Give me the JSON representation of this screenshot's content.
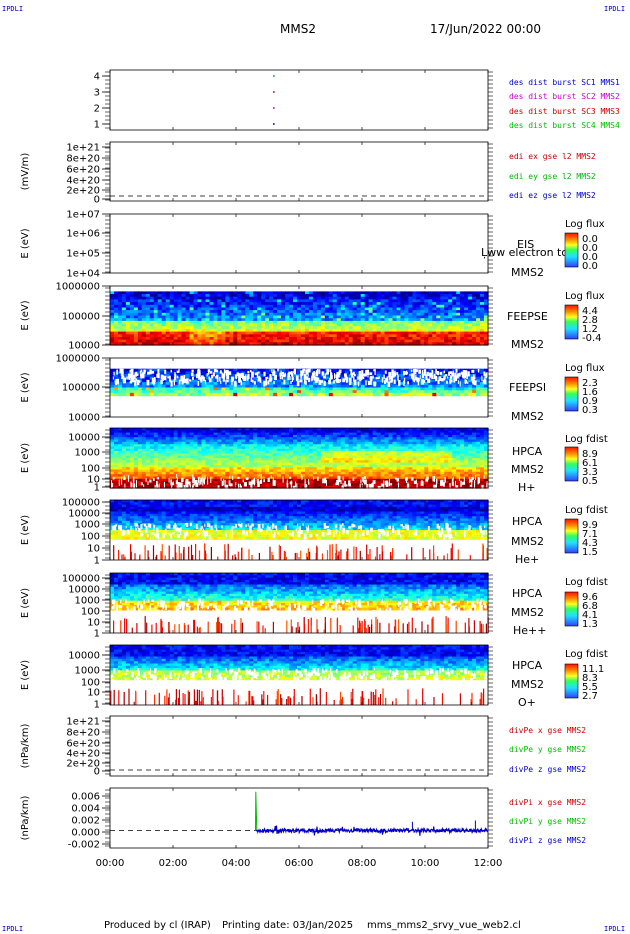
{
  "corner_label": "IPDLI",
  "header": {
    "spacecraft": "MMS2",
    "date": "17/Jun/2022 00:00"
  },
  "footer": {
    "produced_by": "Produced by cl (IRAP)",
    "printing_date": "Printing date: 03/Jan/2025",
    "script": "mms_mms2_srvy_vue_web2.cl"
  },
  "colors": {
    "mms1": "#0000cc",
    "mms2": "#cc00cc",
    "mms3": "#cc0000",
    "mms4": "#00bb00",
    "x": "#cc0000",
    "y": "#00bb00",
    "z": "#0000cc"
  },
  "chart_data": {
    "type": "multi-panel time series",
    "time_axis": {
      "ticks": [
        "00:00",
        "02:00",
        "04:00",
        "06:00",
        "08:00",
        "10:00",
        "12:00"
      ],
      "range_hours": [
        0,
        12
      ]
    },
    "panels": [
      {
        "id": "burst",
        "type": "scatter",
        "yticks": [
          "1",
          "2",
          "3",
          "4"
        ],
        "legend": [
          "des dist burst SC1 MMS1",
          "des dist burst SC2 MMS2",
          "des dist burst SC3 MMS3",
          "des dist burst SC4 MMS4"
        ],
        "points": [
          {
            "x_hours": 5.2,
            "y": 4,
            "series": 4
          },
          {
            "x_hours": 5.2,
            "y": 3,
            "series": 3
          },
          {
            "x_hours": 5.2,
            "y": 2,
            "series": 2
          },
          {
            "x_hours": 5.2,
            "y": 1,
            "series": 1
          }
        ]
      },
      {
        "id": "edi",
        "type": "line",
        "ylabel": "(mV/m)",
        "yticks": [
          "1e+21",
          "8e+20",
          "6e+20",
          "4e+20",
          "2e+20",
          "0"
        ],
        "legend": [
          "edi ex gse l2 MMS2",
          "edi ey gse l2 MMS2",
          "edi ez gse l2 MMS2"
        ]
      },
      {
        "id": "eis",
        "type": "heatmap",
        "ylabel": "E (eV)",
        "yticks": [
          "1e+07",
          "1e+06",
          "1e+05",
          "1e+04"
        ],
        "labels": [
          "EIS",
          "MMS2"
        ],
        "overlap_text": "Ļww electron to",
        "colorbar": {
          "title": "Log flux",
          "values": [
            "0.0",
            "0.0",
            "0.0",
            "0.0"
          ]
        }
      },
      {
        "id": "feepse",
        "type": "heatmap",
        "ylabel": "E (eV)",
        "yticks": [
          "1000000",
          "100000",
          "10000"
        ],
        "labels": [
          "FEEPSE",
          "MMS2"
        ],
        "colorbar": {
          "title": "Log flux",
          "values": [
            "4.4",
            "2.8",
            "1.2",
            "-0.4"
          ]
        }
      },
      {
        "id": "feepsi",
        "type": "heatmap",
        "ylabel": "E (eV)",
        "yticks": [
          "1000000",
          "100000",
          "10000"
        ],
        "labels": [
          "FEEPSI",
          "MMS2"
        ],
        "colorbar": {
          "title": "Log flux",
          "values": [
            "2.3",
            "1.6",
            "0.9",
            "0.3"
          ]
        }
      },
      {
        "id": "hpca-h",
        "type": "heatmap",
        "ylabel": "E (eV)",
        "yticks": [
          "10000",
          "1000",
          "100",
          "10",
          "1"
        ],
        "labels": [
          "HPCA",
          "MMS2",
          "H+"
        ],
        "colorbar": {
          "title": "Log fdist",
          "values": [
            "8.9",
            "6.1",
            "3.3",
            "0.5"
          ]
        }
      },
      {
        "id": "hpca-he",
        "type": "heatmap",
        "ylabel": "E (eV)",
        "yticks": [
          "100000",
          "10000",
          "1000",
          "100",
          "10",
          "1"
        ],
        "labels": [
          "HPCA",
          "MMS2",
          "He+"
        ],
        "colorbar": {
          "title": "Log fdist",
          "values": [
            "9.9",
            "7.1",
            "4.3",
            "1.5"
          ]
        }
      },
      {
        "id": "hpca-hepp",
        "type": "heatmap",
        "ylabel": "E (eV)",
        "yticks": [
          "100000",
          "10000",
          "1000",
          "100",
          "10",
          "1"
        ],
        "labels": [
          "HPCA",
          "MMS2",
          "He++"
        ],
        "colorbar": {
          "title": "Log fdist",
          "values": [
            "9.6",
            "6.8",
            "4.1",
            "1.3"
          ]
        }
      },
      {
        "id": "hpca-o",
        "type": "heatmap",
        "ylabel": "E (eV)",
        "yticks": [
          "10000",
          "1000",
          "100",
          "10",
          "1"
        ],
        "labels": [
          "HPCA",
          "MMS2",
          "O+"
        ],
        "colorbar": {
          "title": "Log fdist",
          "values": [
            "11.1",
            "8.3",
            "5.5",
            "2.7"
          ]
        }
      },
      {
        "id": "divpe",
        "type": "line",
        "ylabel": "(nPa/km)",
        "yticks": [
          "1e+21",
          "8e+20",
          "6e+20",
          "4e+20",
          "2e+20",
          "0"
        ],
        "legend": [
          "divPe x gse MMS2",
          "divPe y gse MMS2",
          "divPe z gse MMS2"
        ]
      },
      {
        "id": "divpi",
        "type": "line",
        "ylabel": "(nPa/km)",
        "yticks": [
          "0.006",
          "0.004",
          "0.002",
          "0.000",
          "-0.002"
        ],
        "ylim": [
          -0.0028,
          0.0068
        ],
        "legend": [
          "divPi x gse MMS2",
          "divPi y gse MMS2",
          "divPi z gse MMS2"
        ],
        "series": [
          {
            "name": "divPi y gse MMS2",
            "points": [
              [
                4.62,
                0.0
              ],
              [
                4.63,
                0.0062
              ],
              [
                4.66,
                0.0001
              ]
            ]
          },
          {
            "name": "divPi z gse MMS2",
            "start_hours": 4.65,
            "end_hours": 12.0,
            "mean": 0.0,
            "amplitude": 0.0006
          }
        ]
      }
    ]
  }
}
